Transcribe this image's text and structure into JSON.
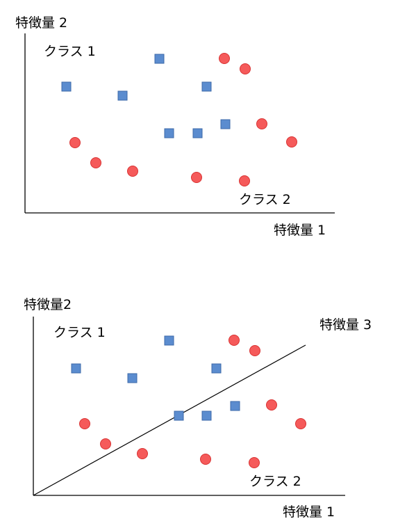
{
  "colors": {
    "square_fill": "#5b8ccf",
    "square_stroke": "#3d6aa8",
    "circle_fill": "#f55a5a",
    "circle_stroke": "#d93333"
  },
  "top_panel": {
    "y_axis_label": "特徴量 2",
    "x_axis_label": "特徴量 1",
    "class1_label": "クラス 1",
    "class2_label": "クラス 2"
  },
  "bottom_panel": {
    "y_axis_label": "特徴量2",
    "x_axis_label": "特徴量 1",
    "feature3_label": "特徴量 3",
    "class1_label": "クラス 1",
    "class2_label": "クラス 2"
  }
}
